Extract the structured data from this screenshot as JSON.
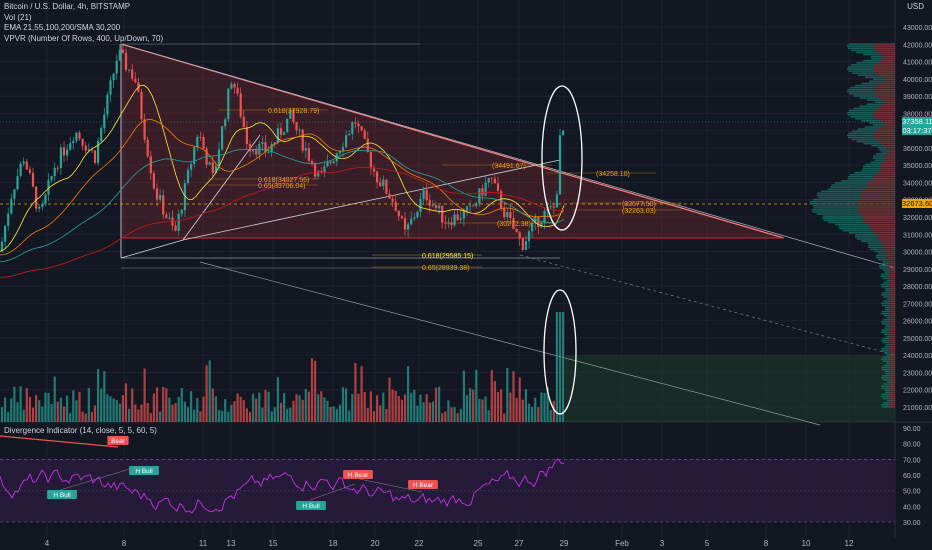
{
  "header": {
    "symbol_line": "Bitcoin / U.S. Dollar, 4h, BITSTAMP",
    "vol_line": "Vol (21)",
    "ema_line": "EMA 21,55,100,200/SMA 30,200",
    "vpvr_line": "VPVR (Number Of Rows, 400, Up/Down, 70)",
    "currency": "USD"
  },
  "indicator": {
    "legend": "Divergence Indicator (14, close, 5, 5, 60, 5)"
  },
  "price_tags": {
    "last_price": "37358.11",
    "countdown": "03:17:37",
    "poc": "32673.60"
  },
  "colors": {
    "background": "#131722",
    "bull": "#26a69a",
    "bear": "#ef5350",
    "triangle": "#f77c80",
    "fib": "#f0a30a",
    "rsi": "#c532e6",
    "rsi_band": "#7e57c2"
  },
  "chart_data": [
    {
      "type": "candlestick",
      "title": "Bitcoin / U.S. Dollar, 4h, BITSTAMP",
      "x_ticks": [
        "4",
        "8",
        "11",
        "13",
        "15",
        "18",
        "20",
        "22",
        "25",
        "27",
        "29",
        "Feb",
        "3",
        "5",
        "8",
        "10",
        "12"
      ],
      "y_ticks": [
        21000,
        22000,
        23000,
        24000,
        25000,
        26000,
        27000,
        28000,
        29000,
        30000,
        31000,
        32000,
        33000,
        34000,
        35000,
        36000,
        37000,
        38000,
        39000,
        40000,
        41000,
        42000,
        43000
      ],
      "ylim": [
        20000,
        44000
      ],
      "last_price": 37358.11,
      "annotations": [
        {
          "text": "0.618(34027.56)",
          "price": 34027.56
        },
        {
          "text": "0.65(33706.04)",
          "price": 33706.04
        },
        {
          "text": "0.618(37928.79)",
          "price": 37928.79
        },
        {
          "text": "0.618(29585.15)",
          "price": 29585.15
        },
        {
          "text": "0.65(28939.38)",
          "price": 28939.38
        },
        {
          "text": "(34258.10)",
          "price": 34258.1
        },
        {
          "text": "(34491.67)",
          "price": 34491.67
        },
        {
          "text": "(32577.50)",
          "price": 32577.5
        },
        {
          "text": "(32263.03)",
          "price": 32263.03
        },
        {
          "text": "(30272.38)",
          "price": 30272.38
        }
      ]
    },
    {
      "type": "line",
      "title": "Divergence Indicator (14, close, 5, 5, 60, 5)",
      "y_ticks": [
        30,
        40,
        50,
        60,
        70,
        80,
        90
      ],
      "ylim": [
        24,
        93
      ],
      "band": [
        30,
        70
      ],
      "labels": [
        {
          "text": "Bear",
          "kind": "bear"
        },
        {
          "text": "H Bull",
          "kind": "bull"
        },
        {
          "text": "H Bull",
          "kind": "bull"
        },
        {
          "text": "H Bull",
          "kind": "bull"
        },
        {
          "text": "H Bear",
          "kind": "bear"
        },
        {
          "text": "H Bear",
          "kind": "bear"
        }
      ]
    }
  ]
}
